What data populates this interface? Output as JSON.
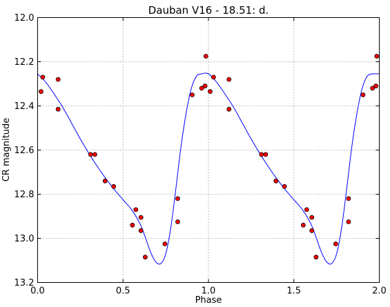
{
  "chart_data": {
    "type": "scatter",
    "title": "Dauban V16 - 18.51: d.",
    "xlabel": "Phase",
    "ylabel": "CR magnitude",
    "xlim": [
      0.0,
      2.0
    ],
    "ylim": [
      13.2,
      12.0
    ],
    "y_inverted": true,
    "grid": true,
    "x_ticks": [
      "0.0",
      "0.5",
      "1.0",
      "1.5",
      "2.0"
    ],
    "y_ticks": [
      "12.0",
      "12.2",
      "12.4",
      "12.6",
      "12.8",
      "13.0",
      "13.2"
    ],
    "colors": {
      "points": "#ff0000",
      "point_edge": "#000000",
      "curve": "#0000ff",
      "grid": "#7f7f7f"
    },
    "series": [
      {
        "kind": "points",
        "x": [
          0.02,
          0.03,
          0.12,
          0.12,
          0.31,
          0.335,
          0.395,
          0.445,
          0.555,
          0.575,
          0.605,
          0.605,
          0.63,
          0.745,
          0.82,
          0.82,
          0.905,
          0.96,
          0.98,
          0.985,
          1.01,
          1.03,
          1.12,
          1.12,
          1.31,
          1.335,
          1.395,
          1.445,
          1.555,
          1.575,
          1.605,
          1.605,
          1.63,
          1.745,
          1.82,
          1.82,
          1.905,
          1.96,
          1.98,
          1.985
        ],
        "y": [
          12.335,
          12.27,
          12.28,
          12.415,
          12.62,
          12.62,
          12.74,
          12.765,
          12.94,
          12.87,
          12.905,
          12.965,
          13.085,
          13.025,
          12.925,
          12.82,
          12.35,
          12.32,
          12.31,
          12.175,
          12.335,
          12.27,
          12.28,
          12.415,
          12.62,
          12.62,
          12.74,
          12.765,
          12.94,
          12.87,
          12.905,
          12.965,
          13.085,
          13.025,
          12.925,
          12.82,
          12.35,
          12.32,
          12.31,
          12.175
        ]
      },
      {
        "kind": "fit-line",
        "x": [
          0.0,
          0.05,
          0.1,
          0.15,
          0.2,
          0.25,
          0.3,
          0.35,
          0.4,
          0.45,
          0.5,
          0.55,
          0.6,
          0.63,
          0.66,
          0.69,
          0.72,
          0.75,
          0.78,
          0.81,
          0.84,
          0.87,
          0.9,
          0.93,
          0.96,
          1.0,
          1.05,
          1.1,
          1.15,
          1.2,
          1.25,
          1.3,
          1.35,
          1.4,
          1.45,
          1.5,
          1.55,
          1.6,
          1.63,
          1.66,
          1.69,
          1.72,
          1.75,
          1.78,
          1.81,
          1.84,
          1.87,
          1.9,
          1.93,
          1.96,
          2.0
        ],
        "y": [
          12.255,
          12.295,
          12.35,
          12.41,
          12.48,
          12.55,
          12.615,
          12.675,
          12.73,
          12.78,
          12.825,
          12.87,
          12.935,
          12.995,
          13.06,
          13.105,
          13.115,
          13.07,
          12.95,
          12.77,
          12.58,
          12.43,
          12.32,
          12.265,
          12.255,
          12.255,
          12.295,
          12.35,
          12.41,
          12.48,
          12.55,
          12.615,
          12.675,
          12.73,
          12.78,
          12.825,
          12.87,
          12.935,
          12.995,
          13.06,
          13.105,
          13.115,
          13.07,
          12.95,
          12.77,
          12.58,
          12.43,
          12.32,
          12.265,
          12.255,
          12.255
        ]
      }
    ]
  }
}
